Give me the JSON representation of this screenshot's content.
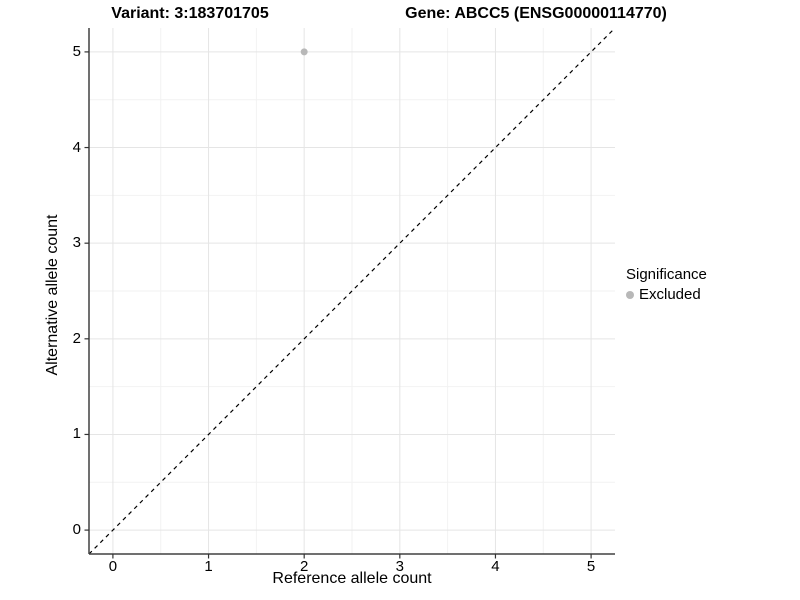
{
  "header": {
    "variant_title": "Variant: 3:183701705",
    "gene_title": "Gene: ABCC5 (ENSG00000114770)"
  },
  "chart_data": {
    "type": "scatter",
    "title": "",
    "xlabel": "Reference allele count",
    "ylabel": "Alternative allele count",
    "xlim": [
      -0.25,
      5.25
    ],
    "ylim": [
      -0.25,
      5.25
    ],
    "x_ticks": [
      0,
      1,
      2,
      3,
      4,
      5
    ],
    "y_ticks": [
      0,
      1,
      2,
      3,
      4,
      5
    ],
    "x_minor_ticks": [
      0.5,
      1.5,
      2.5,
      3.5,
      4.5
    ],
    "y_minor_ticks": [
      0.5,
      1.5,
      2.5,
      3.5,
      4.5
    ],
    "grid": "on",
    "series": [
      {
        "name": "Excluded",
        "color": "#b8b8b8",
        "point_radius": 3.5,
        "points": [
          {
            "x": 2,
            "y": 5
          }
        ]
      }
    ],
    "identity_line": {
      "slope": 1,
      "intercept": 0,
      "style": "dashed",
      "color": "#000000"
    },
    "legend": {
      "title": "Significance",
      "position": "right",
      "entries": [
        {
          "label": "Excluded",
          "color": "#b8b8b8"
        }
      ]
    }
  },
  "style": {
    "background": "#ffffff",
    "grid_major_color": "#e5e5e5",
    "grid_minor_color": "#f2f2f2",
    "axis_line_color": "#404040",
    "tick_color": "#333333",
    "text_color": "#000000"
  }
}
